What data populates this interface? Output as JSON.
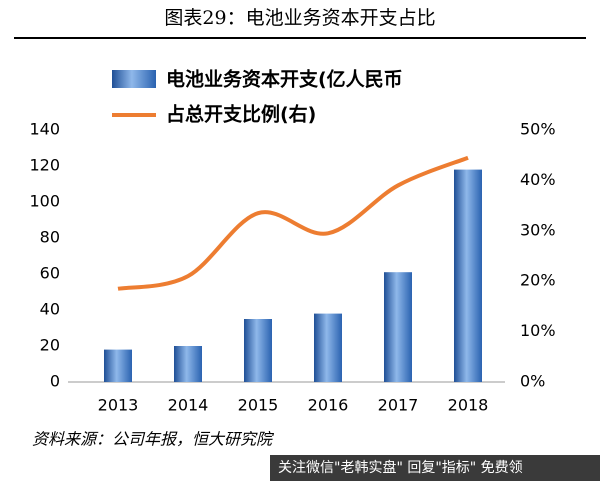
{
  "chart_data": {
    "type": "bar-line",
    "title": "图表29：电池业务资本开支占比",
    "source": "资料来源：公司年报，恒大研究院",
    "watermark": "关注微信\"老韩实盘\" 回复\"指标\" 免费领",
    "categories": [
      "2013",
      "2014",
      "2015",
      "2016",
      "2017",
      "2018"
    ],
    "series": [
      {
        "name": "电池业务资本开支(亿人民币",
        "type": "bar",
        "color": "#3a78c9",
        "values": [
          18,
          20,
          35,
          38,
          61,
          118
        ]
      },
      {
        "name": "占总开支比例(右)",
        "type": "line",
        "color": "#ed7d31",
        "axis": "y2",
        "values": [
          18.5,
          21,
          33.5,
          29.5,
          39,
          44.5
        ]
      }
    ],
    "ylim": [
      0,
      140
    ],
    "yticks": [
      0,
      20,
      40,
      60,
      80,
      100,
      120,
      140
    ],
    "y2lim": [
      0,
      50
    ],
    "y2ticks": [
      {
        "value": 0,
        "label": "0%"
      },
      {
        "value": 10,
        "label": "10%"
      },
      {
        "value": 20,
        "label": "20%"
      },
      {
        "value": 30,
        "label": "30%"
      },
      {
        "value": 40,
        "label": "40%"
      },
      {
        "value": 50,
        "label": "50%"
      }
    ]
  }
}
